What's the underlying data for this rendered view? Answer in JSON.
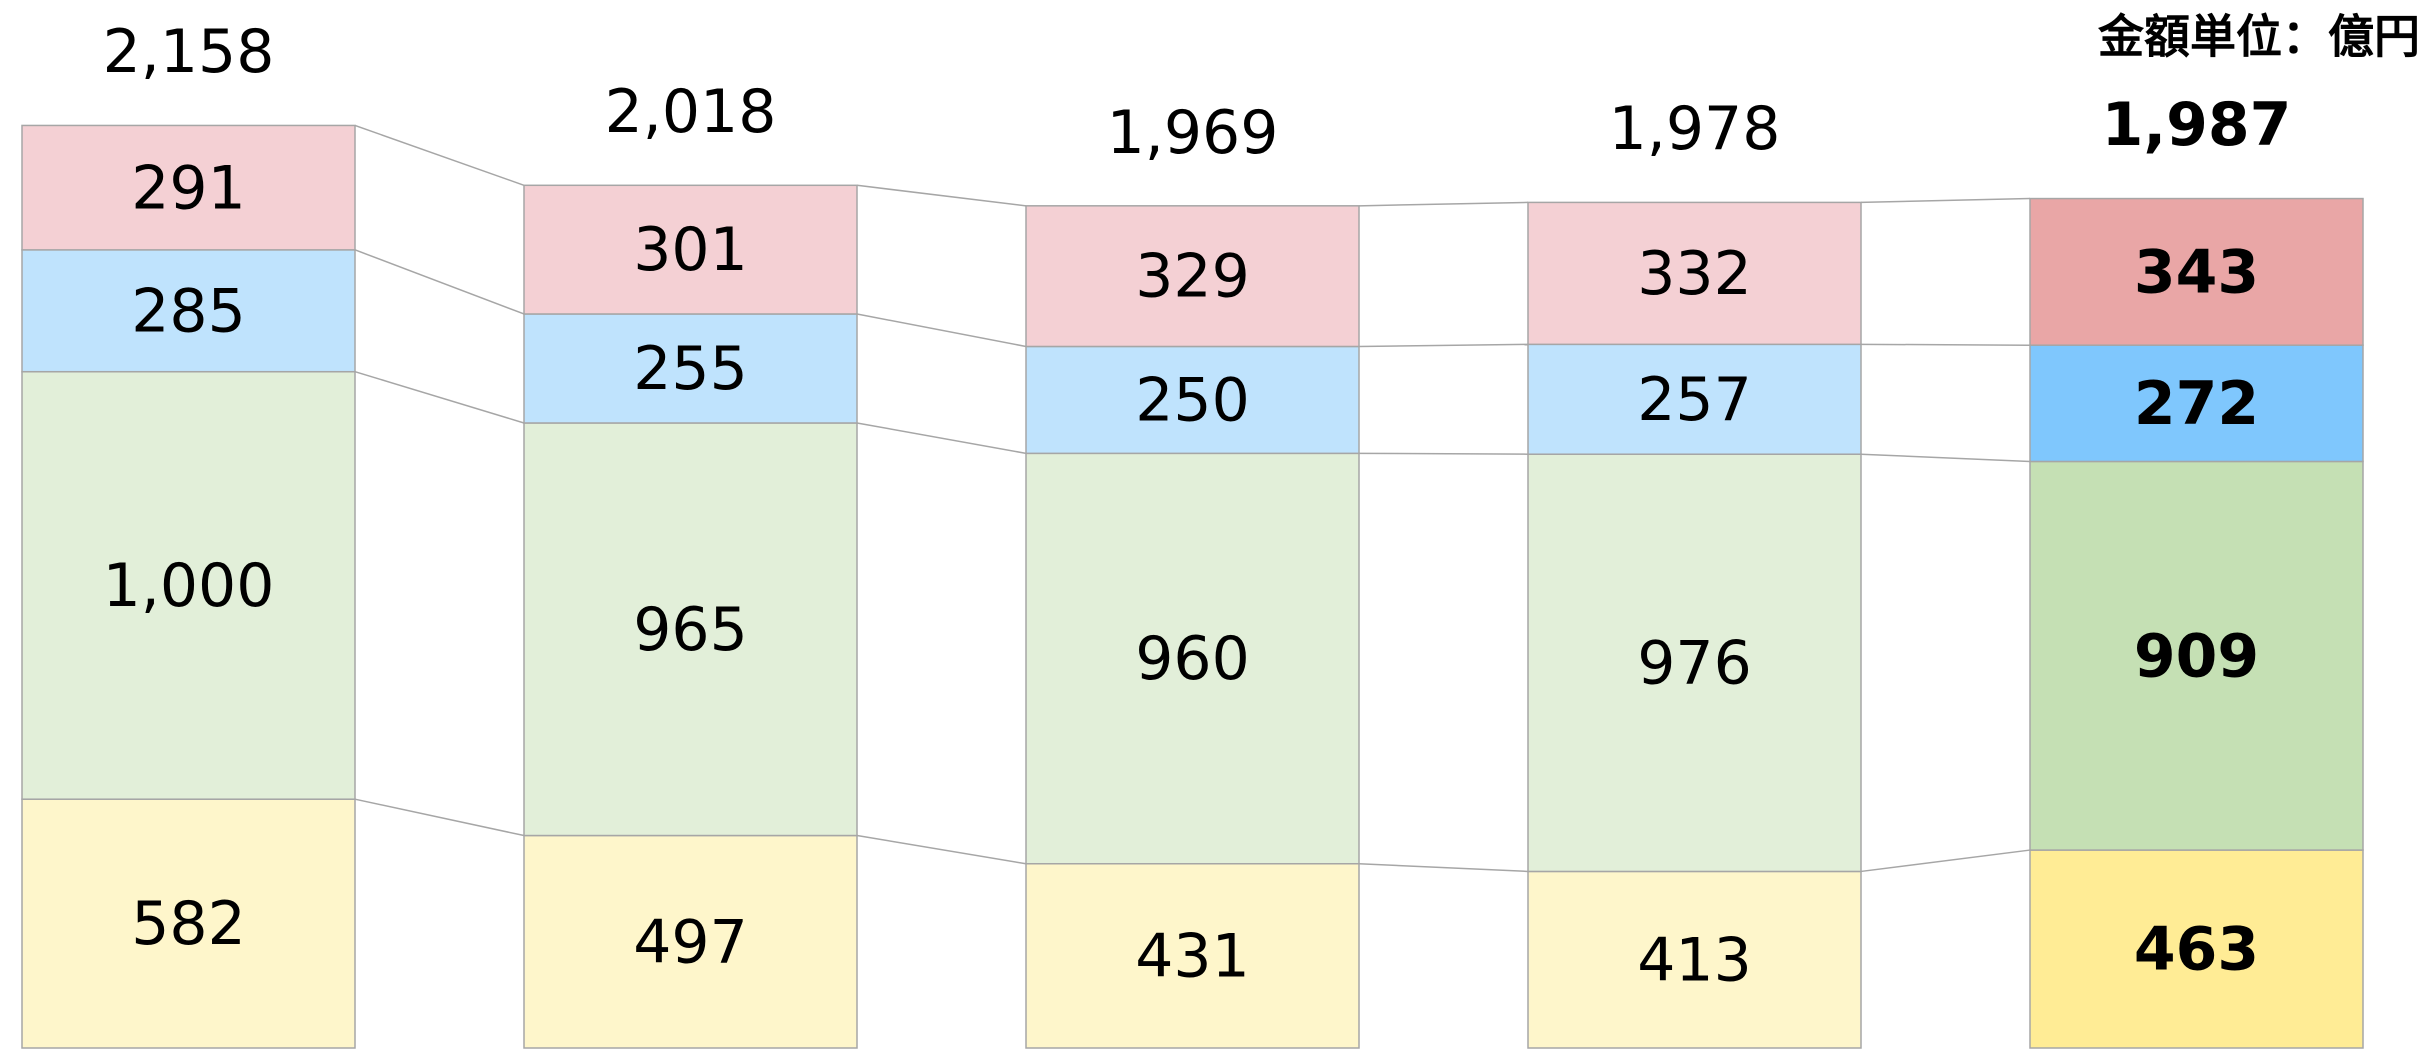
{
  "chart_data": {
    "type": "stacked_bar",
    "unit_label": "金額単位：億円",
    "categories": [
      null,
      null,
      null,
      null,
      null
    ],
    "series": [
      {
        "color": "#fef6cb",
        "highlight_color": "#ffec95",
        "values": [
          582,
          497,
          431,
          413,
          463
        ]
      },
      {
        "color": "#e2efd9",
        "highlight_color": "#c5e0b4",
        "values": [
          1000,
          965,
          960,
          976,
          909
        ],
        "value_labels": [
          "1,000",
          "965",
          "960",
          "976",
          "909"
        ]
      },
      {
        "color": "#bfe3fd",
        "highlight_color": "#7fc7fd",
        "values": [
          285,
          255,
          250,
          257,
          272
        ]
      },
      {
        "color": "#f4d0d4",
        "highlight_color": "#e9a6a6",
        "values": [
          291,
          301,
          329,
          332,
          343
        ]
      }
    ],
    "totals": [
      2158,
      2018,
      1969,
      1978,
      1987
    ],
    "total_labels": [
      "2,158",
      "2,018",
      "1,969",
      "1,978",
      "1,987"
    ],
    "highlight": 4,
    "ylim": [
      0,
      2400
    ]
  }
}
